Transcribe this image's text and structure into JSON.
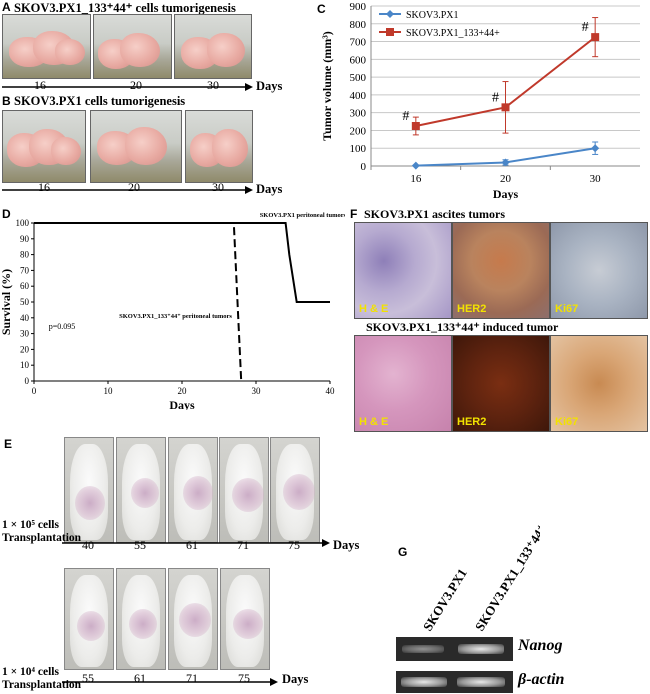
{
  "panel_a": {
    "letter": "A",
    "title": "SKOV3.PX1_133⁺44⁺ cells tumorigenesis",
    "ticks": [
      "16",
      "20",
      "30"
    ],
    "axis_label": "Days"
  },
  "panel_b": {
    "letter": "B",
    "title": "SKOV3.PX1 cells tumorigenesis",
    "ticks": [
      "16",
      "20",
      "30"
    ],
    "axis_label": "Days"
  },
  "panel_c": {
    "letter": "C"
  },
  "panel_d": {
    "letter": "D"
  },
  "panel_e": {
    "letter": "E",
    "row1": {
      "cells_label": "1 × 10⁵ cells",
      "transplant_label": "Transplantation",
      "ticks": [
        "40",
        "55",
        "61",
        "71",
        "75"
      ],
      "axis_label": "Days"
    },
    "row2": {
      "cells_label": "1 × 10⁴ cells",
      "transplant_label": "Transplantation",
      "ticks": [
        "55",
        "61",
        "71",
        "75"
      ],
      "axis_label": "Days"
    }
  },
  "panel_f": {
    "letter": "F",
    "title_top": "SKOV3.PX1 ascites tumors",
    "title_bottom": "SKOV3.PX1_133⁺44⁺ induced tumor",
    "stains": [
      "H & E",
      "HER2",
      "Ki67"
    ]
  },
  "panel_g": {
    "letter": "G",
    "lanes": [
      "SKOV3.PX1",
      "SKOV3.PX1_133⁺44⁺"
    ],
    "genes": [
      "Nanog",
      "β-actin"
    ]
  },
  "chart_data": [
    {
      "panel": "C",
      "type": "line",
      "categories": [
        "16",
        "20",
        "30"
      ],
      "xlabel": "Days",
      "ylabel": "Tumor volume (mm³)",
      "ylim": [
        0,
        900
      ],
      "yticks": [
        0,
        100,
        200,
        300,
        400,
        500,
        600,
        700,
        800,
        900
      ],
      "grid": true,
      "legend_position": "top-left",
      "series": [
        {
          "name": "SKOV3.PX1",
          "color": "#4a86c8",
          "marker": "diamond",
          "values": [
            2,
            20,
            100
          ],
          "errors": [
            3,
            15,
            35
          ]
        },
        {
          "name": "SKOV3.PX1_133+44+",
          "color": "#c0392b",
          "marker": "square",
          "values": [
            225,
            330,
            725
          ],
          "errors": [
            50,
            145,
            110
          ]
        }
      ],
      "annotations": [
        "#",
        "#",
        "#"
      ]
    },
    {
      "panel": "D",
      "type": "line",
      "xlabel": "Days",
      "ylabel": "Survival (%)",
      "xlim": [
        0,
        40
      ],
      "ylim": [
        0,
        100
      ],
      "xticks": [
        0,
        10,
        20,
        30,
        40
      ],
      "yticks": [
        0,
        10,
        20,
        30,
        40,
        50,
        60,
        70,
        80,
        90,
        100
      ],
      "grid": false,
      "p_value_label": "p=0.095",
      "series": [
        {
          "name": "SKOV3.PX1 peritoneal tumors",
          "style": "solid",
          "x": [
            0,
            34,
            34.5,
            35.5,
            40
          ],
          "y": [
            100,
            100,
            80,
            50,
            50
          ]
        },
        {
          "name": "SKOV3.PX1_133⁺44⁺ peritoneal tumors",
          "style": "dashed",
          "x": [
            0,
            27,
            28
          ],
          "y": [
            100,
            100,
            0
          ]
        }
      ]
    }
  ]
}
